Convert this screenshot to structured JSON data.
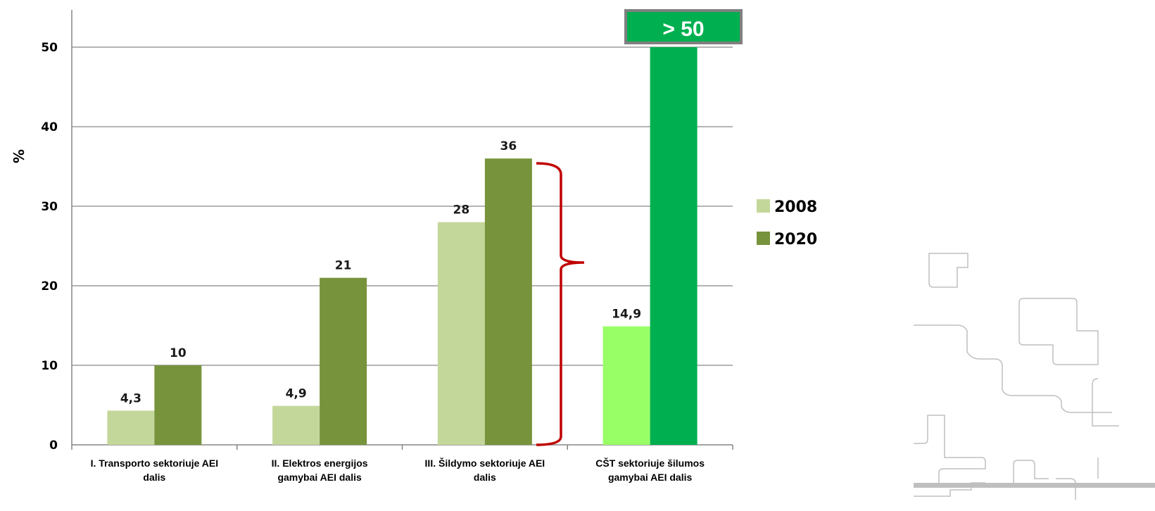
{
  "chart_data": {
    "type": "bar",
    "ylabel": "%",
    "xlabel": "",
    "ylim": [
      0,
      55
    ],
    "yticks": [
      0,
      10,
      20,
      30,
      40,
      50
    ],
    "grid": true,
    "legend_position": "right",
    "categories": [
      [
        "I. Transporto sektoriuje AEI",
        "dalis"
      ],
      [
        "II. Elektros energijos",
        "gamybai AEI dalis"
      ],
      [
        "III. Šildymo sektoriuje AEI",
        "dalis"
      ],
      [
        "CŠT sektoriuje šilumos",
        "gamybai AEI dalis"
      ]
    ],
    "series": [
      {
        "name": "2008",
        "values": [
          4.3,
          4.9,
          28,
          14.9
        ],
        "labels": [
          "4,3",
          "4,9",
          "28",
          "14,9"
        ],
        "color": "#c4d79b",
        "highlight_color": "#99ff66"
      },
      {
        "name": "2020",
        "values": [
          10,
          21,
          36,
          50
        ],
        "labels": [
          "10",
          "21",
          "36",
          "> 50"
        ],
        "color": "#77933c",
        "highlight_color": "#00b050"
      }
    ],
    "callout": {
      "text": "> 50",
      "color": "#00b050",
      "border": "#7f7f7f"
    },
    "bracket_color": "#c00000"
  }
}
